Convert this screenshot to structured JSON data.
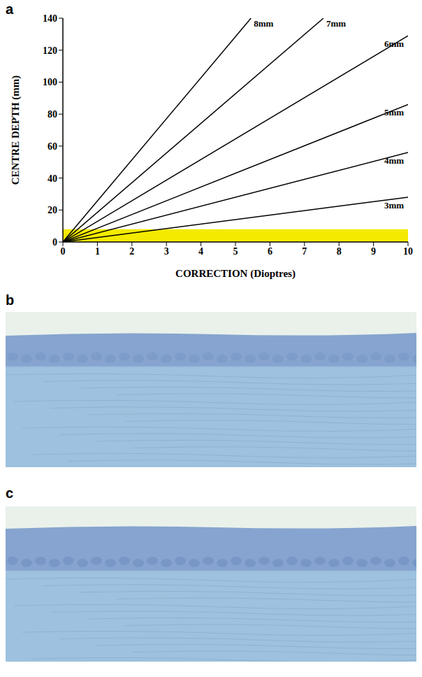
{
  "panel_labels": [
    "a",
    "b",
    "c"
  ],
  "chart_data": {
    "type": "line",
    "x_label": "CORRECTION (Dioptres)",
    "y_label": "CENTRE DEPTH (mm)",
    "xlim": [
      0,
      10
    ],
    "xticks": [
      0,
      1,
      2,
      3,
      4,
      5,
      6,
      7,
      8,
      9,
      10
    ],
    "ylim": [
      0,
      140
    ],
    "yticks": [
      0,
      20,
      40,
      60,
      80,
      100,
      120,
      140
    ],
    "grid": false,
    "band": {
      "y": [
        0,
        8
      ],
      "color": "#f4ea00"
    },
    "series": [
      {
        "name": "3mm",
        "color": "#000000",
        "x": [
          0,
          10
        ],
        "values": [
          0,
          28
        ]
      },
      {
        "name": "4mm",
        "color": "#000000",
        "x": [
          0,
          10
        ],
        "values": [
          0,
          56
        ]
      },
      {
        "name": "5mm",
        "color": "#000000",
        "x": [
          0,
          10
        ],
        "values": [
          0,
          86
        ]
      },
      {
        "name": "6mm",
        "color": "#000000",
        "x": [
          0,
          10
        ],
        "values": [
          0,
          129
        ]
      },
      {
        "name": "7mm",
        "color": "#000000",
        "x": [
          0,
          7.55
        ],
        "values": [
          0,
          140
        ]
      },
      {
        "name": "8mm",
        "color": "#000000",
        "x": [
          0,
          5.45
        ],
        "values": [
          0,
          140
        ]
      }
    ]
  }
}
